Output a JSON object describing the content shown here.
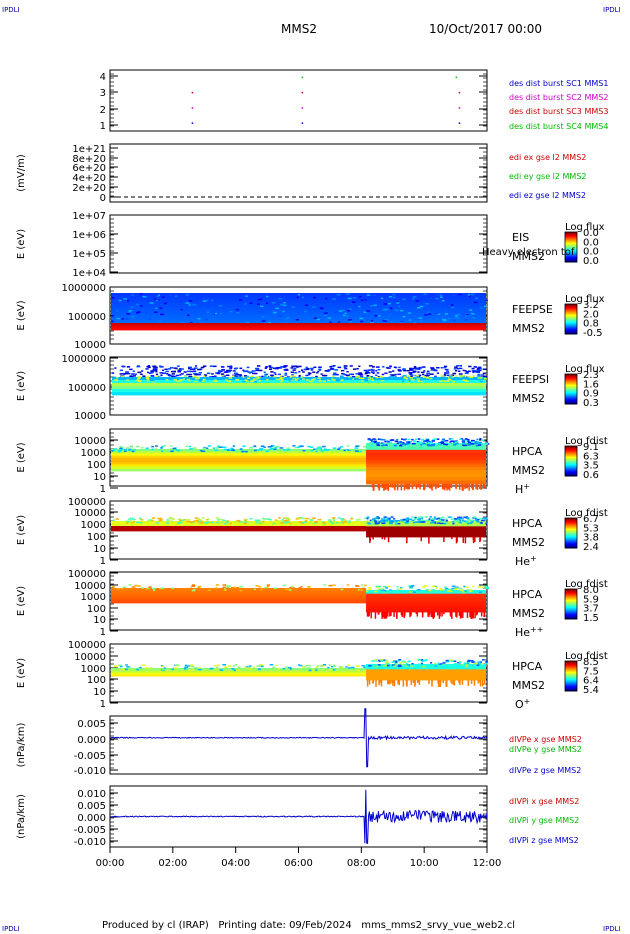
{
  "corner": {
    "tl": "IPDLI",
    "tr": "IPDLI",
    "bl": "IPDLI",
    "br": "IPDLI"
  },
  "header": {
    "title": "MMS2",
    "date": "10/Oct/2017 00:00"
  },
  "footer": {
    "text": "Produced by cl (IRAP)   Printing date: 09/Feb/2024   mms_mms2_srvy_vue_web2.cl"
  },
  "chart_data": [
    {
      "type": "scatter",
      "id": "dist",
      "ylabel": "",
      "ylim": [
        0.5,
        4.5
      ],
      "yticks": [
        "1",
        "2",
        "3",
        "4"
      ],
      "legend": [
        {
          "text": "des dist burst SC1 MMS1",
          "color": "#0000cc"
        },
        {
          "text": "des dist burst SC2 MMS2",
          "color": "#cc00cc"
        },
        {
          "text": "des dist burst SC3 MMS3",
          "color": "#cc0000"
        },
        {
          "text": "des dist burst SC4 MMS4",
          "color": "#00bb00"
        }
      ],
      "series": [
        {
          "y": 1,
          "color": "#0000cc",
          "x": [
            2.6,
            6.1,
            11.1
          ]
        },
        {
          "y": 2,
          "color": "#cc00cc",
          "x": [
            2.6,
            6.1,
            11.1
          ]
        },
        {
          "y": 3,
          "color": "#cc0000",
          "x": [
            2.6,
            6.1,
            11.1
          ]
        },
        {
          "y": 4,
          "color": "#00bb00",
          "x": [
            6.1,
            11.0
          ]
        }
      ]
    },
    {
      "type": "line",
      "id": "edi",
      "ylabel": "(mV/m)",
      "yticks": [
        "0",
        "2e+20",
        "4e+20",
        "6e+20",
        "8e+20",
        "1e+21"
      ],
      "legend": [
        {
          "text": "edi ex gse l2 MMS2",
          "color": "#cc0000"
        },
        {
          "text": "edi ey gse l2 MMS2",
          "color": "#00bb00"
        },
        {
          "text": "edi ez gse l2 MMS2",
          "color": "#0000cc"
        }
      ]
    },
    {
      "type": "heatmap",
      "id": "eis",
      "ylabel": "E (eV)",
      "yticks": [
        "1e+04",
        "1e+05",
        "1e+06",
        "1e+07"
      ],
      "labels": [
        "EIS",
        "MMS2"
      ],
      "overlay": "Heavy electron tof",
      "cbar_title": "Log flux",
      "cbar_ticks": [
        "0.0",
        "0.0",
        "0.0",
        "0.0"
      ]
    },
    {
      "type": "heatmap",
      "id": "feepse",
      "ylabel": "E (eV)",
      "yticks": [
        "10000",
        "100000",
        "1000000"
      ],
      "labels": [
        "FEEPSE",
        "MMS2"
      ],
      "cbar_title": "Log flux",
      "cbar_ticks": [
        "3.2",
        "2.0",
        "0.8",
        "-0.5"
      ]
    },
    {
      "type": "heatmap",
      "id": "feepsi",
      "ylabel": "E (eV)",
      "yticks": [
        "10000",
        "100000",
        "1000000"
      ],
      "labels": [
        "FEEPSI",
        "MMS2"
      ],
      "cbar_title": "Log flux",
      "cbar_ticks": [
        "2.3",
        "1.6",
        "0.9",
        "0.3"
      ]
    },
    {
      "type": "heatmap",
      "id": "hpca_h",
      "ylabel": "E (eV)",
      "yticks": [
        "1",
        "10",
        "100",
        "1000",
        "10000"
      ],
      "labels": [
        "HPCA",
        "MMS2"
      ],
      "species": "H",
      "charge": "+",
      "cbar_title": "Log fdist",
      "cbar_ticks": [
        "9.1",
        "6.3",
        "3.5",
        "0.6"
      ]
    },
    {
      "type": "heatmap",
      "id": "hpca_he",
      "ylabel": "E (eV)",
      "yticks": [
        "1",
        "10",
        "100",
        "1000",
        "10000",
        "100000"
      ],
      "labels": [
        "HPCA",
        "MMS2"
      ],
      "species": "He",
      "charge": "+",
      "cbar_title": "Log fdist",
      "cbar_ticks": [
        "6.7",
        "5.3",
        "3.8",
        "2.4"
      ]
    },
    {
      "type": "heatmap",
      "id": "hpca_he2",
      "ylabel": "E (eV)",
      "yticks": [
        "1",
        "10",
        "100",
        "1000",
        "10000",
        "100000"
      ],
      "labels": [
        "HPCA",
        "MMS2"
      ],
      "species": "He",
      "charge": "++",
      "cbar_title": "Log fdist",
      "cbar_ticks": [
        "8.0",
        "5.9",
        "3.7",
        "1.5"
      ]
    },
    {
      "type": "heatmap",
      "id": "hpca_o",
      "ylabel": "E (eV)",
      "yticks": [
        "1",
        "10",
        "100",
        "1000",
        "10000",
        "100000"
      ],
      "labels": [
        "HPCA",
        "MMS2"
      ],
      "species": "O",
      "charge": "+",
      "cbar_title": "Log fdist",
      "cbar_ticks": [
        "8.5",
        "7.5",
        "6.4",
        "5.4"
      ]
    },
    {
      "type": "line",
      "id": "dvpe",
      "ylabel": "(nPa/km)",
      "ylim": [
        -0.0125,
        0.0075
      ],
      "yticks": [
        "-0.010",
        "-0.005",
        "0.000",
        "0.005"
      ],
      "legend": [
        {
          "text": "dIVPe x gse MMS2",
          "color": "#cc0000"
        },
        {
          "text": "dIVPe y gse MMS2",
          "color": "#00bb00"
        },
        {
          "text": "dIVPe z gse MMS2",
          "color": "#0000cc"
        }
      ]
    },
    {
      "type": "line",
      "id": "dvpi",
      "ylabel": "(nPa/km)",
      "ylim": [
        -0.0125,
        0.0125
      ],
      "yticks": [
        "-0.010",
        "-0.005",
        "0.000",
        "0.005",
        "0.010"
      ],
      "legend": [
        {
          "text": "dIVPi x gse MMS2",
          "color": "#cc0000"
        },
        {
          "text": "dIVPi y gse MMS2",
          "color": "#00bb00"
        },
        {
          "text": "dIVPi z gse MMS2",
          "color": "#0000cc"
        }
      ]
    }
  ],
  "xaxis": {
    "ticks": [
      "00:00",
      "02:00",
      "04:00",
      "06:00",
      "08:00",
      "10:00",
      "12:00"
    ],
    "xlim": [
      0,
      12
    ]
  }
}
